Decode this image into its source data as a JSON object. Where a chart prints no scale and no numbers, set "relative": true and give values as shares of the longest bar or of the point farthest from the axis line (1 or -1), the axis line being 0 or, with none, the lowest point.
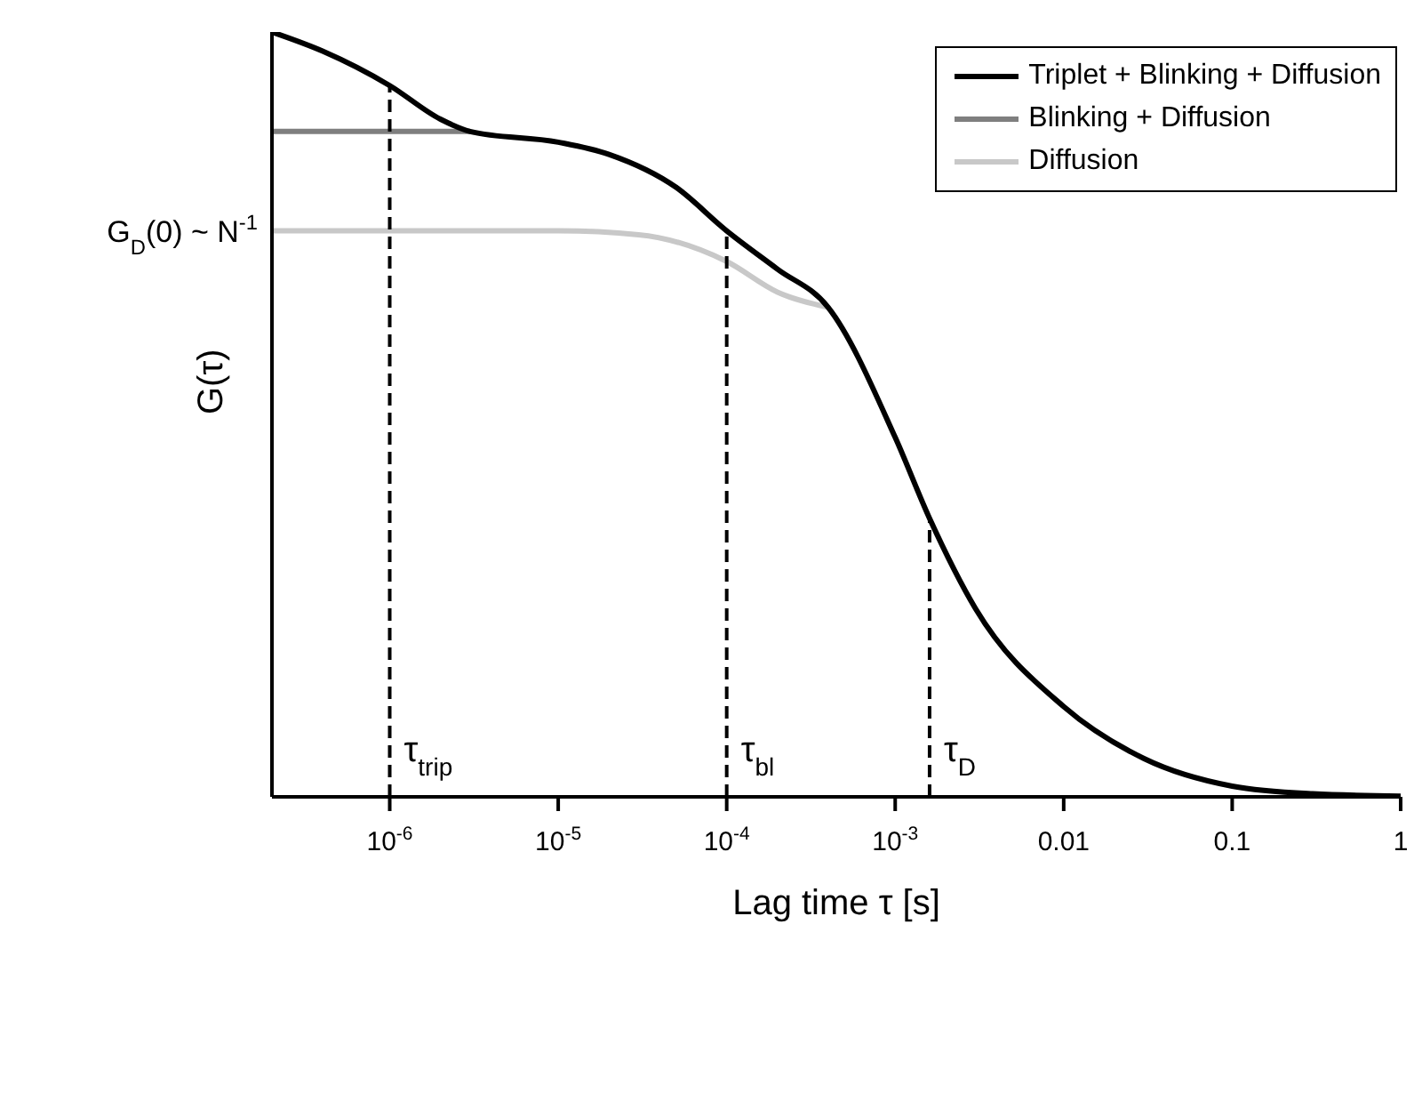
{
  "chart_data": {
    "type": "line",
    "relative": true,
    "xlabel": "Lag time τ [s]",
    "ylabel": "G(τ)",
    "log": "x",
    "xlim": [
      2e-07,
      1
    ],
    "xticks": [
      {
        "value": 1e-06,
        "label": "10$^{-6}$"
      },
      {
        "value": 1e-05,
        "label": "10$^{-5}$"
      },
      {
        "value": 0.0001,
        "label": "10$^{-4}$"
      },
      {
        "value": 0.001,
        "label": "10$^{-3}$"
      },
      0.01,
      0.1,
      1
    ],
    "legend": "top right",
    "line_style": "solid",
    "marker": "none",
    "series": [
      {
        "name": "Triplet + Blinking + Diffusion",
        "color": "#000000",
        "x": [
          2e-07,
          4e-07,
          1e-06,
          2e-06,
          3e-06,
          1e-05,
          2e-05,
          5e-05,
          0.0001,
          0.0002,
          0.0004,
          0.001,
          0.0016,
          0.003,
          0.01,
          0.03,
          0.1,
          0.3,
          1
        ],
        "values": [
          1.0,
          0.975,
          0.93,
          0.886,
          0.87,
          0.856,
          0.84,
          0.797,
          0.74,
          0.69,
          0.64,
          0.47,
          0.364,
          0.246,
          0.118,
          0.05,
          0.014,
          0.004,
          0.001
        ]
      },
      {
        "name": "Blinking + Diffusion",
        "color": "#7f7f7f",
        "x": [
          2e-07,
          1e-06,
          3e-06
        ],
        "values": [
          0.87,
          0.87,
          0.87
        ]
      },
      {
        "name": "Diffusion",
        "color": "#c8c8c8",
        "x": [
          2e-07,
          1e-06,
          1e-05,
          3e-05,
          0.0001,
          0.0002,
          0.0004
        ],
        "values": [
          0.74,
          0.74,
          0.74,
          0.735,
          0.7,
          0.66,
          0.64
        ]
      }
    ],
    "ref_lines": [
      {
        "axis": "x",
        "value": 1e-06,
        "label": "τ$_{trip}$",
        "line_style": "dashed",
        "color": "#000000"
      },
      {
        "axis": "x",
        "value": 0.0001,
        "label": "τ$_{bl}$",
        "line_style": "dashed",
        "color": "#000000"
      },
      {
        "axis": "x",
        "value": 0.0016,
        "label": "τ$_{D}$",
        "line_style": "dashed",
        "color": "#000000"
      }
    ],
    "annotations": [
      {
        "text": "G$_{D}$(0) ~ N$^{-1}$",
        "x": 2e-07,
        "y": 0.74
      }
    ]
  }
}
